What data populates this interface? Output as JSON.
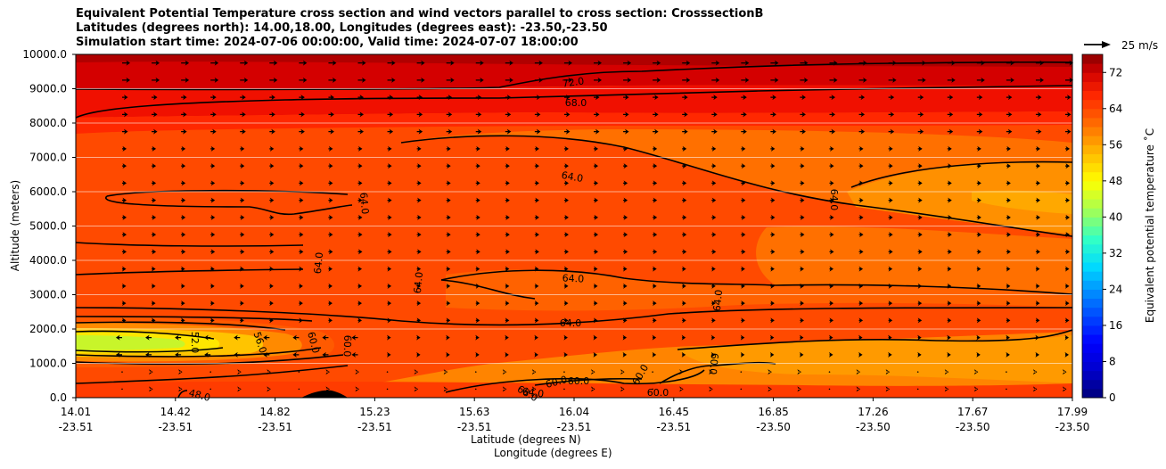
{
  "chart_data": {
    "type": "heatmap",
    "title_lines": [
      "Equivalent Potential Temperature cross section and wind vectors parallel to cross section: CrosssectionB",
      "Latitudes (degrees north): 14.00,18.00, Longitudes (degrees east): -23.50,-23.50",
      "Simulation start time: 2024-07-06 00:00:00, Valid time: 2024-07-07 18:00:00"
    ],
    "ylabel": "Altitude (meters)",
    "xlabel_lat": "Latitude (degrees N)",
    "xlabel_lon": "Longitude (degrees E)",
    "ylim": [
      0,
      10000
    ],
    "y_ticks": [
      "0.0",
      "1000.0",
      "2000.0",
      "3000.0",
      "4000.0",
      "5000.0",
      "6000.0",
      "7000.0",
      "8000.0",
      "9000.0",
      "10000.0"
    ],
    "x_ticks_lat": [
      "14.01",
      "14.42",
      "14.82",
      "15.23",
      "15.63",
      "16.04",
      "16.45",
      "16.85",
      "17.26",
      "17.67",
      "17.99"
    ],
    "x_ticks_lon": [
      "-23.51",
      "-23.51",
      "-23.51",
      "-23.51",
      "-23.51",
      "-23.51",
      "-23.51",
      "-23.50",
      "-23.50",
      "-23.50",
      "-23.50"
    ],
    "colorbar": {
      "label": "Equivalent potential temperature ˚C",
      "range": [
        0,
        76
      ],
      "ticks": [
        "0",
        "8",
        "16",
        "24",
        "32",
        "40",
        "48",
        "56",
        "64",
        "72"
      ]
    },
    "quiver_key": {
      "label": "25 m/s",
      "speed": 25
    },
    "contour_labels": [
      "72.0",
      "68.0",
      "64.0",
      "64.0",
      "64.0",
      "64.0",
      "64.0",
      "64.0",
      "64.0",
      "64.0",
      "64.0",
      "60.0",
      "60.0",
      "60.0",
      "60.0",
      "60.0",
      "60.0",
      "60.0",
      "56.0",
      "52.0",
      "48.0",
      "68.0",
      "64.0"
    ],
    "summary": {
      "theta_e_upper_levels_C": 74,
      "theta_e_mid_levels_C": 64,
      "theta_e_low_level_minimum_C": 47,
      "wind_direction": "mostly toward higher latitude (left to right)"
    }
  }
}
